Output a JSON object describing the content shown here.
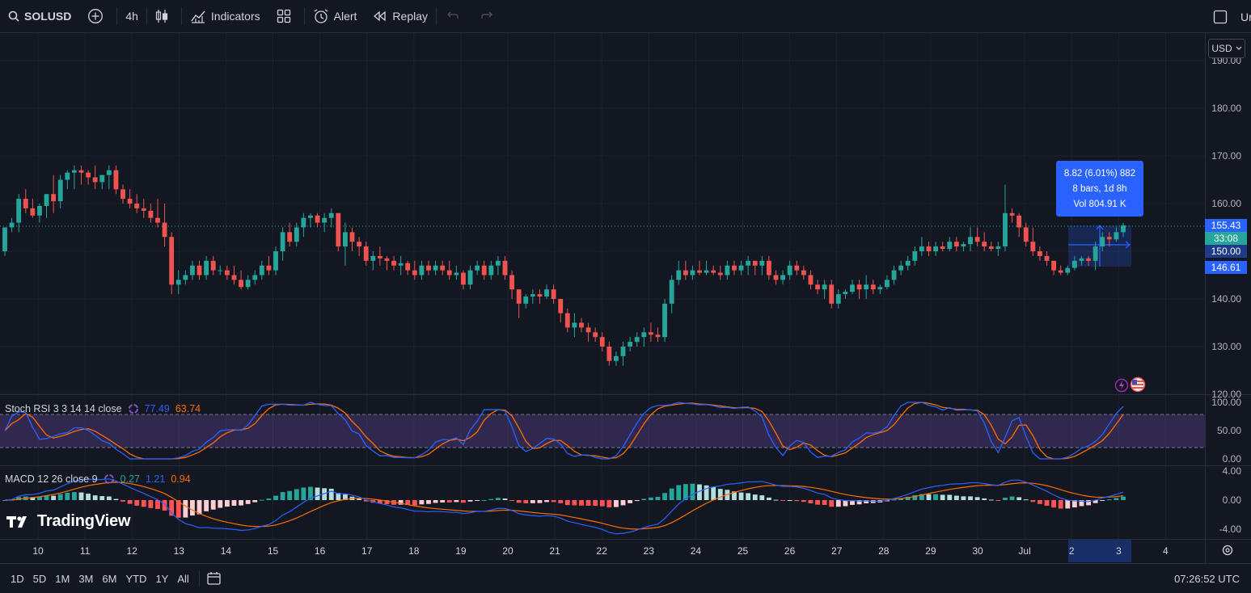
{
  "toolbar": {
    "symbol": "SOLUSD",
    "interval": "4h",
    "indicators_label": "Indicators",
    "alert_label": "Alert",
    "replay_label": "Replay",
    "right_cut_label": "Ur"
  },
  "currency_button": "USD",
  "price_axis": {
    "ticks": [
      "190.00",
      "180.00",
      "170.00",
      "160.00",
      "150.00",
      "140.00",
      "130.00",
      "120.00"
    ],
    "current_price": "155.43",
    "countdown": "33:08",
    "range_high": "150.00",
    "range_low": "146.61"
  },
  "measure_tooltip": {
    "line1": "8.82 (6.01%) 882",
    "line2": "8 bars, 1d 8h",
    "line3": "Vol 804.91 K"
  },
  "stoch_rsi": {
    "label": "Stoch RSI 3 3 14 14 close",
    "k": "77.49",
    "d": "63.74",
    "k_color": "#2962ff",
    "d_color": "#ff6d00",
    "ticks": [
      "100.00",
      "50.00",
      "0.00"
    ]
  },
  "macd": {
    "label": "MACD 12 26 close 9",
    "hist": "0.27",
    "macd": "1.21",
    "signal": "0.94",
    "hist_color": "#26a69a",
    "macd_color": "#2962ff",
    "signal_color": "#ff6d00",
    "ticks": [
      "4.00",
      "0.00",
      "-4.00"
    ]
  },
  "time_axis": [
    "10",
    "11",
    "12",
    "13",
    "14",
    "15",
    "16",
    "17",
    "18",
    "19",
    "20",
    "21",
    "22",
    "23",
    "24",
    "25",
    "26",
    "27",
    "28",
    "29",
    "30",
    "Jul",
    "2",
    "3",
    "4"
  ],
  "bottom": {
    "ranges": [
      "1D",
      "5D",
      "1M",
      "3M",
      "6M",
      "YTD",
      "1Y",
      "All"
    ],
    "time": "07:26:52 UTC"
  },
  "brand": "TradingView",
  "colors": {
    "up": "#26a69a",
    "down": "#ef5350",
    "background": "#131722",
    "accent": "#2962ff"
  },
  "chart_data": {
    "type": "candlestick",
    "y_range": [
      120,
      190
    ],
    "candles_ohlc": [
      [
        150,
        155,
        149,
        155
      ],
      [
        155,
        157,
        154,
        156
      ],
      [
        156,
        162,
        154,
        161
      ],
      [
        161,
        163,
        158,
        159
      ],
      [
        159,
        161,
        157,
        157.5
      ],
      [
        157.5,
        160,
        156,
        159.5
      ],
      [
        159.5,
        162,
        157,
        162
      ],
      [
        162,
        166,
        158,
        160.5
      ],
      [
        160.5,
        166,
        159,
        165
      ],
      [
        165,
        167,
        163,
        166.5
      ],
      [
        166.5,
        168,
        163,
        167
      ],
      [
        167,
        168,
        164,
        166.5
      ],
      [
        166.5,
        167,
        164,
        165.5
      ],
      [
        165.5,
        168,
        163,
        164.5
      ],
      [
        164.5,
        166,
        163,
        166
      ],
      [
        166,
        168,
        163,
        167
      ],
      [
        167,
        168,
        162,
        163
      ],
      [
        163,
        164,
        160,
        161
      ],
      [
        161,
        163,
        159,
        160
      ],
      [
        160,
        162,
        158,
        159
      ],
      [
        159,
        161,
        157,
        158.5
      ],
      [
        158.5,
        160,
        156,
        157
      ],
      [
        157,
        161,
        155,
        156
      ],
      [
        156,
        160,
        151,
        153
      ],
      [
        153,
        154,
        141,
        143
      ],
      [
        143,
        146,
        141,
        144
      ],
      [
        144,
        146,
        143,
        145
      ],
      [
        145,
        148,
        144,
        147
      ],
      [
        147,
        148,
        144,
        145
      ],
      [
        145,
        149,
        144,
        148
      ],
      [
        148,
        149,
        145,
        146
      ],
      [
        146,
        147,
        145,
        146
      ],
      [
        146,
        147,
        144,
        145
      ],
      [
        145,
        147,
        143,
        144
      ],
      [
        144,
        146,
        142,
        142.5
      ],
      [
        142.5,
        145,
        142,
        144
      ],
      [
        144,
        146,
        143,
        145
      ],
      [
        145,
        148,
        144,
        147
      ],
      [
        147,
        149,
        145,
        146
      ],
      [
        146,
        151,
        145,
        150
      ],
      [
        150,
        155,
        148,
        154
      ],
      [
        154,
        156,
        151,
        152
      ],
      [
        152,
        156,
        151,
        155
      ],
      [
        155,
        158,
        153,
        157
      ],
      [
        157,
        158,
        155,
        157.5
      ],
      [
        157.5,
        158,
        155,
        156
      ],
      [
        156,
        158,
        154,
        157
      ],
      [
        157,
        159,
        155,
        158
      ],
      [
        158,
        158,
        150,
        151
      ],
      [
        151,
        156,
        147,
        154
      ],
      [
        154,
        155,
        150,
        152
      ],
      [
        152,
        153,
        149,
        151
      ],
      [
        151,
        152,
        147,
        148
      ],
      [
        148,
        150,
        146,
        149
      ],
      [
        149,
        151,
        147,
        148.5
      ],
      [
        148.5,
        149,
        146,
        148
      ],
      [
        148,
        149,
        146,
        147
      ],
      [
        147,
        149,
        145,
        147.5
      ],
      [
        147.5,
        148,
        145,
        146
      ],
      [
        146,
        148,
        144,
        145
      ],
      [
        145,
        148,
        144,
        147
      ],
      [
        147,
        148,
        145,
        146
      ],
      [
        146,
        148,
        145,
        147
      ],
      [
        147,
        148,
        145,
        146
      ],
      [
        146,
        148,
        144,
        145
      ],
      [
        145,
        147,
        144,
        145.5
      ],
      [
        145.5,
        146,
        142,
        143
      ],
      [
        143,
        147,
        142,
        146
      ],
      [
        146,
        148,
        145,
        147
      ],
      [
        147,
        148,
        144,
        145
      ],
      [
        145,
        148,
        144,
        147
      ],
      [
        147,
        149,
        145,
        148
      ],
      [
        148,
        149,
        144,
        145
      ],
      [
        145,
        146,
        140,
        142
      ],
      [
        142,
        142,
        136,
        139
      ],
      [
        139,
        141,
        138,
        140.5
      ],
      [
        140.5,
        142,
        139,
        141
      ],
      [
        141,
        142,
        139,
        140.5
      ],
      [
        140.5,
        143,
        140,
        142
      ],
      [
        142,
        143,
        139,
        140
      ],
      [
        140,
        140,
        135,
        137
      ],
      [
        137,
        138,
        133,
        134
      ],
      [
        134,
        137,
        132,
        135
      ],
      [
        135,
        136,
        133,
        134
      ],
      [
        134,
        135,
        131,
        133
      ],
      [
        133,
        134,
        131,
        132
      ],
      [
        132,
        133,
        129,
        130
      ],
      [
        130,
        131,
        126,
        127
      ],
      [
        127,
        129,
        126,
        128
      ],
      [
        128,
        131,
        126,
        130
      ],
      [
        130,
        132,
        129,
        131
      ],
      [
        131,
        133,
        130,
        132
      ],
      [
        132,
        134,
        130,
        133
      ],
      [
        133,
        135,
        131,
        132.5
      ],
      [
        132.5,
        134,
        131,
        132
      ],
      [
        132,
        140,
        131,
        139
      ],
      [
        139,
        145,
        137,
        144
      ],
      [
        144,
        148,
        143,
        146
      ],
      [
        146,
        148,
        144,
        145
      ],
      [
        145,
        147,
        144,
        146
      ],
      [
        146,
        148,
        145,
        145.5
      ],
      [
        145.5,
        148,
        145,
        146
      ],
      [
        146,
        147,
        145,
        145.5
      ],
      [
        145.5,
        147,
        144,
        145
      ],
      [
        145,
        148,
        144,
        147
      ],
      [
        147,
        148,
        145,
        146
      ],
      [
        146,
        148,
        145,
        147
      ],
      [
        147,
        149,
        145,
        148
      ],
      [
        148,
        148,
        145,
        147
      ],
      [
        147,
        149,
        145,
        148
      ],
      [
        148,
        149,
        144,
        145
      ],
      [
        145,
        146,
        143,
        144
      ],
      [
        144,
        146,
        143,
        145
      ],
      [
        145,
        148,
        144,
        147
      ],
      [
        147,
        148,
        145,
        146
      ],
      [
        146,
        147,
        144,
        145
      ],
      [
        145,
        146,
        142,
        143
      ],
      [
        143,
        144,
        141,
        142
      ],
      [
        142,
        144,
        140,
        143
      ],
      [
        143,
        144,
        138,
        139
      ],
      [
        139,
        142,
        138,
        141
      ],
      [
        141,
        142,
        140,
        141.5
      ],
      [
        141.5,
        144,
        141,
        143
      ],
      [
        143,
        144,
        140,
        142
      ],
      [
        142,
        145,
        140,
        143
      ],
      [
        143,
        144,
        141,
        142
      ],
      [
        142,
        143,
        141,
        142.5
      ],
      [
        142.5,
        145,
        142,
        144
      ],
      [
        144,
        147,
        143,
        146
      ],
      [
        146,
        148,
        145,
        147
      ],
      [
        147,
        149,
        146,
        148
      ],
      [
        148,
        151,
        147,
        150
      ],
      [
        150,
        153,
        149,
        151
      ],
      [
        151,
        152,
        149,
        150
      ],
      [
        150,
        152,
        149,
        151
      ],
      [
        151,
        152,
        150,
        150.5
      ],
      [
        150.5,
        153,
        150,
        152
      ],
      [
        152,
        153,
        150,
        151
      ],
      [
        151,
        152,
        150,
        151.5
      ],
      [
        151.5,
        155,
        150,
        153
      ],
      [
        153,
        155,
        151,
        152
      ],
      [
        152,
        154,
        150,
        151
      ],
      [
        151,
        152,
        150,
        150.5
      ],
      [
        150.5,
        152,
        149,
        151
      ],
      [
        151,
        164,
        150,
        158
      ],
      [
        158,
        159,
        156,
        157.5
      ],
      [
        157.5,
        158,
        153,
        155
      ],
      [
        155,
        156,
        151,
        152
      ],
      [
        152,
        155,
        149,
        150
      ],
      [
        150,
        151,
        148,
        149
      ],
      [
        149,
        150,
        147,
        148
      ],
      [
        148,
        148,
        145,
        146
      ],
      [
        146,
        147,
        145,
        145.5
      ],
      [
        145.5,
        147,
        145,
        146.5
      ],
      [
        146.5,
        149,
        146,
        148
      ],
      [
        148,
        149,
        147,
        148.5
      ],
      [
        148.5,
        149,
        147,
        148
      ],
      [
        148,
        152,
        146,
        151
      ],
      [
        151,
        154,
        150,
        153
      ],
      [
        153,
        154,
        151,
        152.5
      ],
      [
        152.5,
        155,
        152,
        154
      ],
      [
        154,
        156,
        153,
        155.43
      ]
    ]
  }
}
